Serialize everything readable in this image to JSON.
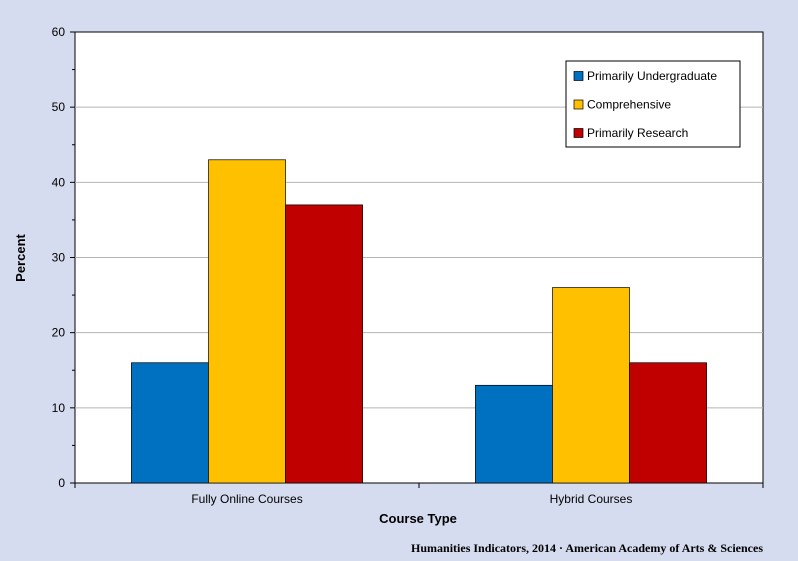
{
  "chart_data": {
    "type": "bar",
    "xlabel": "Course Type",
    "ylabel": "Percent",
    "ylim": [
      0,
      60
    ],
    "yticks": [
      0,
      10,
      20,
      30,
      40,
      50,
      60
    ],
    "grid": true,
    "legend_position": "top-right",
    "categories": [
      "Fully Online Courses",
      "Hybrid Courses"
    ],
    "series": [
      {
        "name": "Primarily Undergraduate",
        "color": "#0070c0",
        "values": [
          16,
          13
        ]
      },
      {
        "name": "Comprehensive",
        "color": "#ffc000",
        "values": [
          43,
          26
        ]
      },
      {
        "name": "Primarily Research",
        "color": "#c00000",
        "values": [
          37,
          16
        ]
      }
    ]
  },
  "source_note": "Humanities Indicators, 2014 · American Academy of Arts & Sciences"
}
